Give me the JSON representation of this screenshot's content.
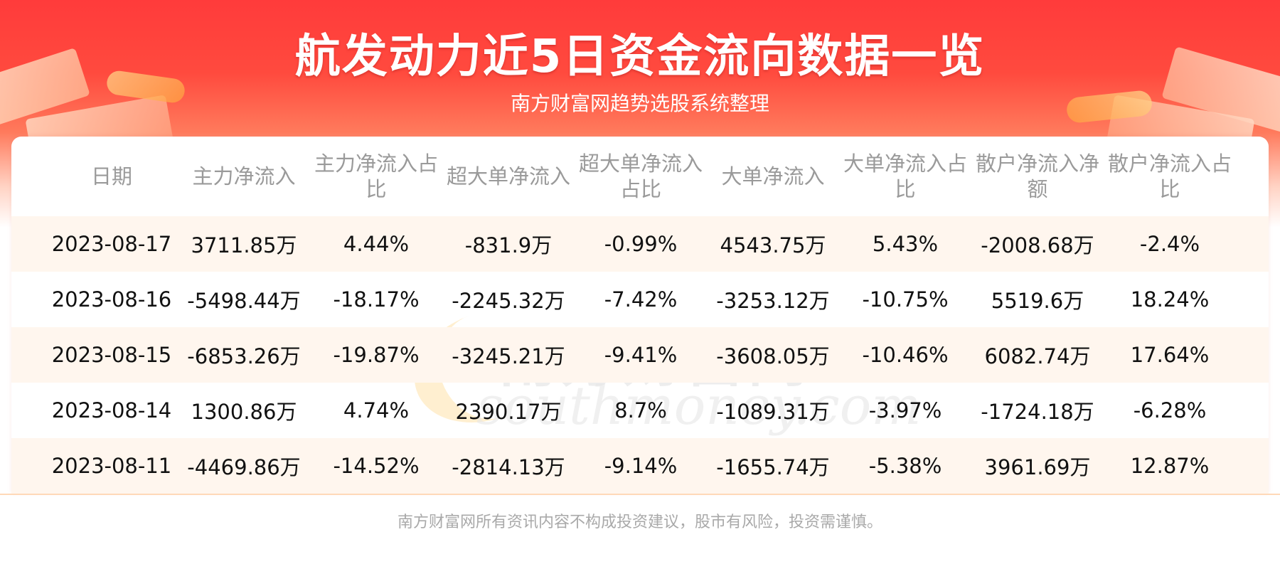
{
  "header": {
    "title": "航发动力近5日资金流向数据一览",
    "subtitle": "南方财富网趋势选股系统整理"
  },
  "table": {
    "columns": [
      "日期",
      "主力净流入",
      "主力净流入占比",
      "超大单净流入",
      "超大单净流入占比",
      "大单净流入",
      "大单净流入占比",
      "散户净流入净额",
      "散户净流入占比"
    ],
    "rows": [
      [
        "2023-08-17",
        "3711.85万",
        "4.44%",
        "-831.9万",
        "-0.99%",
        "4543.75万",
        "5.43%",
        "-2008.68万",
        "-2.4%"
      ],
      [
        "2023-08-16",
        "-5498.44万",
        "-18.17%",
        "-2245.32万",
        "-7.42%",
        "-3253.12万",
        "-10.75%",
        "5519.6万",
        "18.24%"
      ],
      [
        "2023-08-15",
        "-6853.26万",
        "-19.87%",
        "-3245.21万",
        "-9.41%",
        "-3608.05万",
        "-10.46%",
        "6082.74万",
        "17.64%"
      ],
      [
        "2023-08-14",
        "1300.86万",
        "4.74%",
        "2390.17万",
        "8.7%",
        "-1089.31万",
        "-3.97%",
        "-1724.18万",
        "-6.28%"
      ],
      [
        "2023-08-11",
        "-4469.86万",
        "-14.52%",
        "-2814.13万",
        "-9.14%",
        "-1655.74万",
        "-5.38%",
        "3961.69万",
        "12.87%"
      ]
    ]
  },
  "watermark": {
    "cn": "南方财富网",
    "en": "southmoney.com"
  },
  "footer": {
    "disclaimer": "南方财富网所有资讯内容不构成投资建议，股市有风险，投资需谨慎。"
  },
  "colors": {
    "header_red": "#ff3b3b",
    "row_shade": "#fff6ee",
    "header_text_gray": "#9a9a9a"
  }
}
